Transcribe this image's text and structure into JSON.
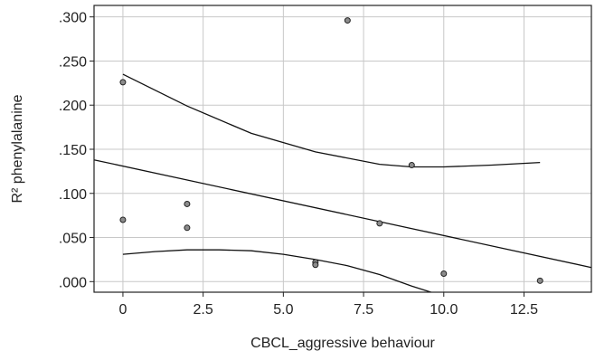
{
  "chart_data": {
    "type": "scatter",
    "title": "",
    "xlabel": "CBCL_aggressive behaviour",
    "ylabel": "R² phenylalanine",
    "xlim": [
      -0.9,
      14.6
    ],
    "ylim": [
      -0.012,
      0.313
    ],
    "grid": true,
    "x_ticks": [
      0,
      2.5,
      5,
      7.5,
      10,
      12.5
    ],
    "x_tick_labels": [
      "0",
      "2.5",
      "5.0",
      "7.5",
      "10.0",
      "12.5"
    ],
    "y_ticks": [
      0,
      0.05,
      0.1,
      0.15,
      0.2,
      0.25,
      0.3
    ],
    "y_tick_labels": [
      ".000",
      ".050",
      ".100",
      ".150",
      ".200",
      ".250",
      ".300"
    ],
    "points": [
      {
        "x": 0,
        "y": 0.226
      },
      {
        "x": 0,
        "y": 0.07
      },
      {
        "x": 2,
        "y": 0.088
      },
      {
        "x": 2,
        "y": 0.061
      },
      {
        "x": 6,
        "y": 0.022
      },
      {
        "x": 6,
        "y": 0.019
      },
      {
        "x": 7,
        "y": 0.296
      },
      {
        "x": 8,
        "y": 0.066
      },
      {
        "x": 9,
        "y": 0.132
      },
      {
        "x": 10,
        "y": 0.009
      },
      {
        "x": 13,
        "y": 0.001
      }
    ],
    "fit_line": [
      {
        "x": -0.9,
        "y": 0.138
      },
      {
        "x": 14.6,
        "y": 0.016
      }
    ],
    "ci_upper": [
      {
        "x": 0,
        "y": 0.235
      },
      {
        "x": 2,
        "y": 0.199
      },
      {
        "x": 4,
        "y": 0.168
      },
      {
        "x": 6,
        "y": 0.147
      },
      {
        "x": 8,
        "y": 0.133
      },
      {
        "x": 9,
        "y": 0.13
      },
      {
        "x": 10,
        "y": 0.13
      },
      {
        "x": 11.5,
        "y": 0.132
      },
      {
        "x": 13,
        "y": 0.135
      }
    ],
    "ci_lower": [
      {
        "x": 0,
        "y": 0.031
      },
      {
        "x": 1,
        "y": 0.034
      },
      {
        "x": 2,
        "y": 0.036
      },
      {
        "x": 3,
        "y": 0.036
      },
      {
        "x": 4,
        "y": 0.035
      },
      {
        "x": 5,
        "y": 0.031
      },
      {
        "x": 6,
        "y": 0.025
      },
      {
        "x": 7,
        "y": 0.018
      },
      {
        "x": 8,
        "y": 0.008
      },
      {
        "x": 9,
        "y": -0.005
      },
      {
        "x": 9.6,
        "y": -0.012
      }
    ]
  }
}
